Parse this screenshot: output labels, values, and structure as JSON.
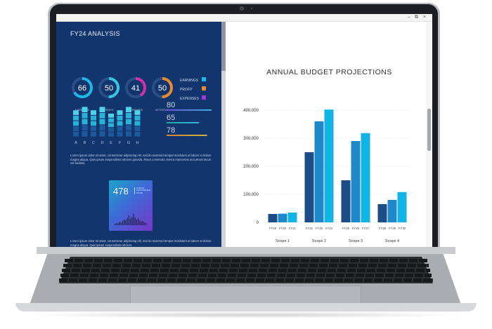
{
  "window": {
    "minimize_glyph": "–",
    "restore_glyph": "⧉",
    "close_glyph": "×"
  },
  "dashboard": {
    "title": "FY24 ANALYSIS",
    "donuts": [
      {
        "value": "66",
        "label": "EARNINGS",
        "percent": 66,
        "color": "#1fb6e8"
      },
      {
        "value": "50",
        "label": "PROFIT",
        "percent": 50,
        "color": "#35c7e0"
      },
      {
        "value": "41",
        "label": "EXPENSES",
        "percent": 41,
        "color": "#d62ea8"
      },
      {
        "value": "50",
        "label": "ATTRITION",
        "percent": 50,
        "color": "#e88a2f"
      }
    ],
    "legend": [
      {
        "label": "EARNINGS",
        "color": "#1fb6e8"
      },
      {
        "label": "PROFIT",
        "color": "#e88a2f"
      },
      {
        "label": "EXPENSES",
        "color": "#a03ad6"
      }
    ],
    "mini_bars": {
      "categories": [
        "A",
        "B",
        "C",
        "D",
        "E",
        "F",
        "G",
        "H"
      ],
      "values": [
        8,
        9,
        8,
        9,
        7,
        8,
        9,
        8
      ]
    },
    "metrics": [
      {
        "value": "80",
        "color_start": "#7a4de8",
        "color_end": "#38c3e8",
        "fill": 1.0
      },
      {
        "value": "65",
        "color_start": "#1fb6a8",
        "color_end": "#38c3e8",
        "fill": 0.72
      },
      {
        "value": "78",
        "color_start": "#e88a2f",
        "color_end": "#e8c13a",
        "fill": 0.9
      }
    ],
    "paragraph_1": "Lorem ipsum dolor sit amet, consectetur adipiscing elit, sed do eiusmod tempor incididunt ut labore et dolore magna aliqua. Quis ipsum suspendisse ultrices gravida. Risus commodo viverra maecenas accumsan lacus vel facilisis.",
    "kpi": {
      "value": "478",
      "subtext": "OVERALL PERFORMANCE SCORE"
    },
    "paragraph_2": "Lorem ipsum dolor sit amet, consectetur adipiscing elit, sed do eiusmod tempor incididunt ut labore et dolore magna aliqua. Quis ipsum suspendisse ultrices"
  },
  "chart_data": {
    "type": "bar",
    "title": "ANNUAL BUDGET PROJECTIONS",
    "ylim": [
      0,
      400000
    ],
    "yticks": [
      "400,000",
      "300,000",
      "200,000",
      "100,000",
      "0"
    ],
    "grid": true,
    "groups": [
      {
        "name": "Scope 1",
        "categories": [
          "FY19",
          "FY20",
          "FY21"
        ],
        "values": [
          30000,
          31000,
          35000
        ]
      },
      {
        "name": "Scope 2",
        "categories": [
          "FY22",
          "FY23",
          "FY24"
        ],
        "values": [
          250000,
          360000,
          402000
        ]
      },
      {
        "name": "Scope 3",
        "categories": [
          "FY25",
          "FY26",
          "FY27"
        ],
        "values": [
          150000,
          290000,
          318000
        ]
      },
      {
        "name": "Scope 4",
        "categories": [
          "FY28",
          "FY29",
          "FY30"
        ],
        "values": [
          65000,
          80000,
          108000
        ]
      }
    ],
    "bar_colors": [
      "#1d4d87",
      "#1e88c9",
      "#11b4e4"
    ]
  }
}
